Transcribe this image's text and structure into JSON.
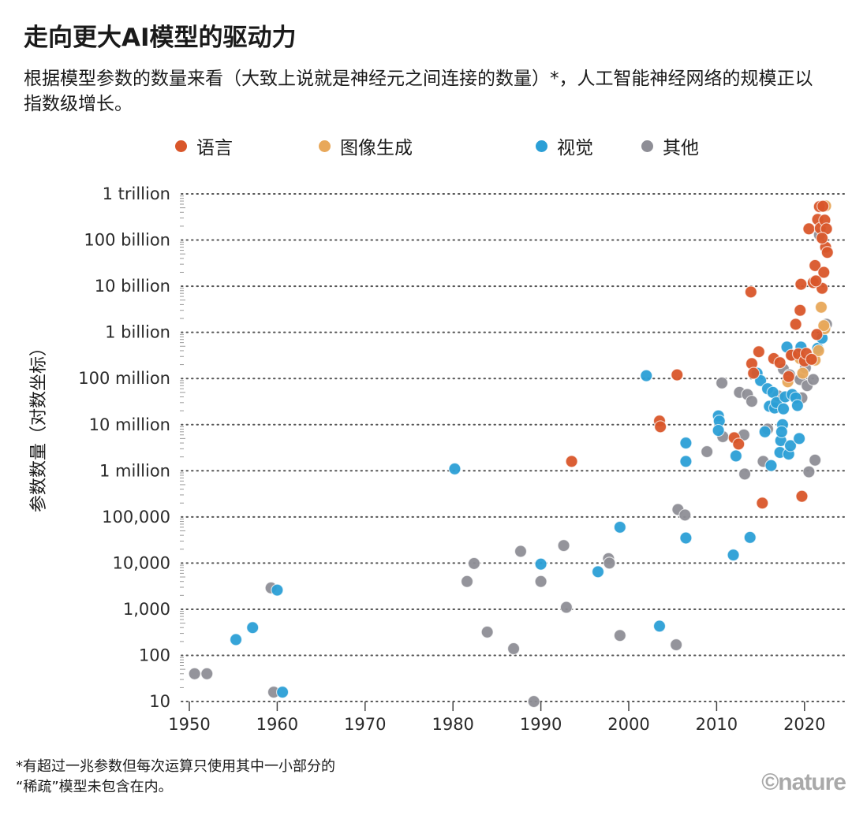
{
  "header": {
    "title": "走向更大AI模型的驱动力",
    "subtitle": "根据模型参数的数量来看（大致上说就是神经元之间连接的数量）*，人工智能神经网络的规模正以指数级增长。"
  },
  "footnote": {
    "line1": "*有超过一兆参数但每次运算只使用其中一小部分的",
    "line2": "“稀疏”模型未包含在内。"
  },
  "logo": "©nature",
  "chart_data": {
    "type": "scatter",
    "title": "走向更大AI模型的驱动力",
    "xlabel": "",
    "ylabel": "参数数量（对数坐标）",
    "x_scale": "linear",
    "y_scale": "log",
    "xlim": [
      1948,
      2025
    ],
    "ylim": [
      10,
      1000000000000
    ],
    "grid": "horizontal-dotted",
    "legend_position": "top",
    "x_ticks": [
      1950,
      1960,
      1970,
      1980,
      1990,
      2000,
      2010,
      2020
    ],
    "x_tick_labels": [
      "1950",
      "1960",
      "1970",
      "1980",
      "1990",
      "2000",
      "2010",
      "2020"
    ],
    "y_ticks": [
      10,
      100,
      1000,
      10000,
      100000,
      1000000,
      10000000,
      100000000,
      1000000000,
      10000000000,
      100000000000,
      1000000000000
    ],
    "y_tick_labels": [
      "10",
      "100",
      "1,000",
      "10,000",
      "100,000",
      "1 million",
      "10 million",
      "100 million",
      "1 billion",
      "10 billion",
      "100 billion",
      "1 trillion"
    ],
    "series": [
      {
        "name": "语言",
        "color": "#d9562a",
        "points": [
          [
            1993.5,
            1600000.0
          ],
          [
            2003.5,
            12000000.0
          ],
          [
            2003.6,
            9000000.0
          ],
          [
            2005.5,
            120000000.0
          ],
          [
            2012.0,
            5200000.0
          ],
          [
            2012.5,
            3800000.0
          ],
          [
            2013.9,
            7500000000.0
          ],
          [
            2014.0,
            210000000.0
          ],
          [
            2014.2,
            130000000.0
          ],
          [
            2014.8,
            380000000.0
          ],
          [
            2015.2,
            200000.0
          ],
          [
            2016.5,
            270000000.0
          ],
          [
            2017.2,
            220000000.0
          ],
          [
            2018.2,
            110000000.0
          ],
          [
            2018.5,
            320000000.0
          ],
          [
            2019.0,
            1500000000.0
          ],
          [
            2019.3,
            340000000.0
          ],
          [
            2019.7,
            280000.0
          ],
          [
            2019.5,
            3000000000.0
          ],
          [
            2019.6,
            11000000000.0
          ],
          [
            2020.0,
            240000000.0
          ],
          [
            2020.2,
            350000000.0
          ],
          [
            2020.5,
            175000000000.0
          ],
          [
            2021.0,
            12000000000.0
          ],
          [
            2021.2,
            28000000000.0
          ],
          [
            2021.5,
            280000000000.0
          ],
          [
            2021.7,
            530000000000.0
          ],
          [
            2021.8,
            180000000000.0
          ],
          [
            2022.0,
            9000000000.0
          ],
          [
            2022.1,
            540000000000.0
          ],
          [
            2022.2,
            20000000000.0
          ],
          [
            2022.3,
            270000000000.0
          ],
          [
            2022.4,
            70000000000.0
          ],
          [
            2022.5,
            175000000000.0
          ],
          [
            2022.6,
            54000000000.0
          ],
          [
            2021.4,
            900000000.0
          ],
          [
            2022.0,
            110000000000.0
          ],
          [
            2021.3,
            13000000000.0
          ],
          [
            2020.8,
            260000000.0
          ]
        ]
      },
      {
        "name": "图像生成",
        "color": "#e8a85a",
        "points": [
          [
            2018.1,
            85000000.0
          ],
          [
            2019.5,
            270000000.0
          ],
          [
            2021.0,
            12000000000.0
          ],
          [
            2021.2,
            250000000.0
          ],
          [
            2021.9,
            3500000000.0
          ],
          [
            2022.3,
            1200000000.0
          ],
          [
            2022.4,
            550000000000.0
          ],
          [
            2022.2,
            1400000000.0
          ],
          [
            2019.8,
            130000000.0
          ],
          [
            2021.6,
            400000000.0
          ]
        ]
      },
      {
        "name": "视觉",
        "color": "#2b9fd6",
        "points": [
          [
            1955.3,
            220
          ],
          [
            1957.2,
            400
          ],
          [
            1960.0,
            2600
          ],
          [
            1960.6,
            16
          ],
          [
            1980.2,
            1100000.0
          ],
          [
            1990.0,
            9500.0
          ],
          [
            1996.5,
            6500.0
          ],
          [
            1999.0,
            60000.0
          ],
          [
            2002.0,
            115000000.0
          ],
          [
            2003.5,
            430
          ],
          [
            2006.5,
            35000.0
          ],
          [
            2006.5,
            1600000.0
          ],
          [
            2006.5,
            4000000.0
          ],
          [
            2010.2,
            15500000.0
          ],
          [
            2010.3,
            12000000.0
          ],
          [
            2010.2,
            7500000.0
          ],
          [
            2011.9,
            15000.0
          ],
          [
            2012.2,
            2100000.0
          ],
          [
            2013.8,
            36000.0
          ],
          [
            2014.6,
            130000000.0
          ],
          [
            2015.0,
            90000000.0
          ],
          [
            2015.5,
            7000000.0
          ],
          [
            2015.8,
            60000000.0
          ],
          [
            2016.0,
            25000000.0
          ],
          [
            2016.2,
            1300000.0
          ],
          [
            2016.4,
            50000000.0
          ],
          [
            2016.6,
            23000000.0
          ],
          [
            2016.8,
            30000000.0
          ],
          [
            2017.2,
            2500000.0
          ],
          [
            2017.3,
            4500000.0
          ],
          [
            2017.5,
            10000000.0
          ],
          [
            2017.6,
            22000000.0
          ],
          [
            2017.8,
            40000000.0
          ],
          [
            2018.0,
            480000000.0
          ],
          [
            2018.2,
            2300000.0
          ],
          [
            2018.4,
            3500000.0
          ],
          [
            2018.6,
            45000000.0
          ],
          [
            2019.0,
            38000000.0
          ],
          [
            2019.2,
            26000000.0
          ],
          [
            2019.4,
            5000000.0
          ],
          [
            2019.6,
            480000000.0
          ],
          [
            2021.5,
            450000000.0
          ],
          [
            2022.0,
            750000000.0
          ],
          [
            2017.4,
            7000000.0
          ]
        ]
      },
      {
        "name": "其他",
        "color": "#8e8e96",
        "points": [
          [
            1950.6,
            40
          ],
          [
            1952.0,
            40
          ],
          [
            1959.3,
            2900
          ],
          [
            1959.6,
            16
          ],
          [
            1981.6,
            4000
          ],
          [
            1982.4,
            9800
          ],
          [
            1983.9,
            320
          ],
          [
            1986.9,
            140
          ],
          [
            1987.7,
            18000.0
          ],
          [
            1989.2,
            10
          ],
          [
            1990.0,
            4000
          ],
          [
            1992.6,
            24000.0
          ],
          [
            1992.9,
            1100
          ],
          [
            1997.7,
            12500.0
          ],
          [
            1997.8,
            10000.0
          ],
          [
            1999.0,
            270
          ],
          [
            2005.4,
            170
          ],
          [
            2005.6,
            145000.0
          ],
          [
            2006.4,
            110000.0
          ],
          [
            2008.9,
            2600000.0
          ],
          [
            2010.6,
            80000000.0
          ],
          [
            2010.7,
            5500000.0
          ],
          [
            2012.6,
            50000000.0
          ],
          [
            2013.1,
            6000000.0
          ],
          [
            2013.2,
            850000.0
          ],
          [
            2013.5,
            45000000.0
          ],
          [
            2014.0,
            32000000.0
          ],
          [
            2015.3,
            1600000.0
          ],
          [
            2015.8,
            8000000.0
          ],
          [
            2017.0,
            42000000.0
          ],
          [
            2017.6,
            160000000.0
          ],
          [
            2018.3,
            120000000.0
          ],
          [
            2019.5,
            95000000.0
          ],
          [
            2020.1,
            170000000.0
          ],
          [
            2020.3,
            70000000.0
          ],
          [
            2020.5,
            950000.0
          ],
          [
            2021.0,
            95000000.0
          ],
          [
            2021.2,
            1700000.0
          ],
          [
            2021.7,
            130000000000.0
          ],
          [
            2022.5,
            1500000000.0
          ],
          [
            2019.7,
            38000000.0
          ],
          [
            2018.6,
            320000000.0
          ]
        ]
      }
    ]
  }
}
